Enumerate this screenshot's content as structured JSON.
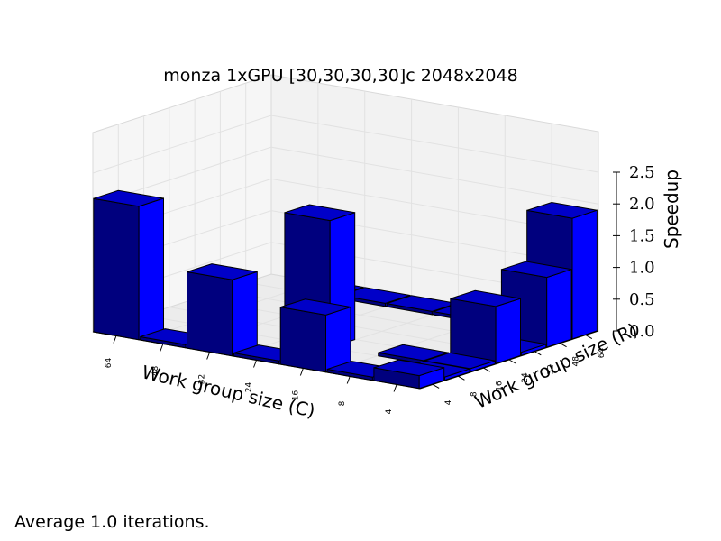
{
  "caption": "Average 1.0 iterations.",
  "colors": {
    "bar_front": "#00007e",
    "bar_side": "#0000ff",
    "bar_top": "#0000c8",
    "edge": "#000000",
    "pane": "#f2f2f2",
    "grid": "#e2e2e2"
  },
  "chart_data": {
    "type": "bar3d",
    "title": "monza 1xGPU [30,30,30,30]c 2048x2048",
    "xlabel": "Work group size (C)",
    "ylabel": "Work group size (R)",
    "zlabel": "Speedup",
    "c_ticks": [
      "64",
      "48",
      "32",
      "24",
      "16",
      "8",
      "4"
    ],
    "r_ticks": [
      "4",
      "8",
      "16",
      "24",
      "32",
      "48",
      "64"
    ],
    "z_ticks": [
      "0.0",
      "0.5",
      "1.0",
      "1.5",
      "2.0",
      "2.5"
    ],
    "zlim": [
      0,
      2.5
    ],
    "grid": true,
    "bars": [
      {
        "c": "64",
        "r": "4",
        "value": 2.1
      },
      {
        "c": "48",
        "r": "4",
        "value": 0.05
      },
      {
        "c": "32",
        "r": "4",
        "value": 1.2
      },
      {
        "c": "24",
        "r": "4",
        "value": 0.05
      },
      {
        "c": "16",
        "r": "4",
        "value": 0.9
      },
      {
        "c": "8",
        "r": "4",
        "value": 0.05
      },
      {
        "c": "4",
        "r": "4",
        "value": 0.2
      },
      {
        "c": "4",
        "r": "8",
        "value": 0.05
      },
      {
        "c": "4",
        "r": "16",
        "value": 0.05
      },
      {
        "c": "8",
        "r": "16",
        "value": 0.05
      },
      {
        "c": "24",
        "r": "16",
        "value": 2.0
      },
      {
        "c": "4",
        "r": "24",
        "value": 0.9
      },
      {
        "c": "4",
        "r": "32",
        "value": 0.05
      },
      {
        "c": "4",
        "r": "48",
        "value": 1.1
      },
      {
        "c": "4",
        "r": "64",
        "value": 1.9
      },
      {
        "c": "48",
        "r": "64",
        "value": 0.05
      },
      {
        "c": "32",
        "r": "64",
        "value": 0.05
      },
      {
        "c": "24",
        "r": "64",
        "value": 0.05
      },
      {
        "c": "16",
        "r": "64",
        "value": 0.05
      },
      {
        "c": "8",
        "r": "64",
        "value": 0.05
      }
    ]
  }
}
